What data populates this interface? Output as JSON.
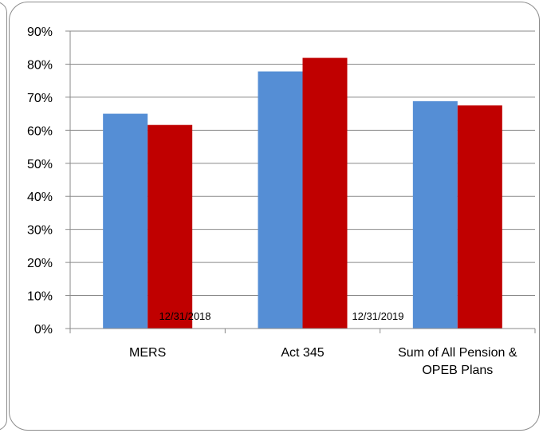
{
  "chart_data": {
    "type": "bar",
    "categories": [
      "MERS",
      "Act 345",
      "Sum of All Pension &\nOPEB Plans"
    ],
    "series": [
      {
        "name": "12/31/2018",
        "color": "#558ED5",
        "values": [
          65,
          77.8,
          68.8
        ]
      },
      {
        "name": "12/31/2019",
        "color": "#C00000",
        "values": [
          61.6,
          81.9,
          67.5
        ]
      }
    ],
    "yunit": "%",
    "ylim": [
      0,
      90
    ],
    "yticks": [
      0,
      10,
      20,
      30,
      40,
      50,
      60,
      70,
      80,
      90
    ],
    "grid": true,
    "legend_position": "bottom-inside",
    "title": "",
    "xlabel": "",
    "ylabel": ""
  }
}
